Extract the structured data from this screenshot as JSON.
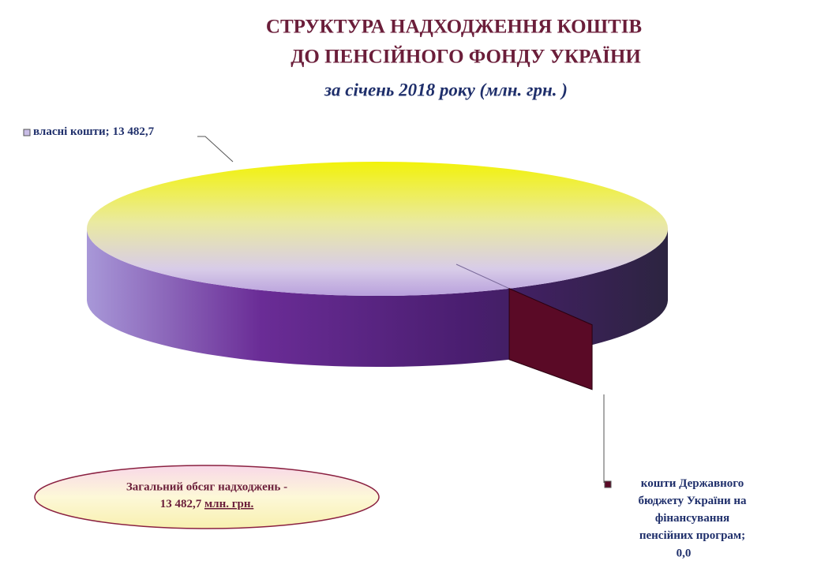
{
  "chart_data": {
    "type": "pie3d",
    "title_lines": [
      "СТРУКТУРА  НАДХОДЖЕННЯ КОШТІВ",
      "ДО ПЕНСІЙНОГО ФОНДУ УКРАЇНИ"
    ],
    "subtitle": "за  січень 2018 року (млн. грн. )",
    "categories": [
      "власні кошти",
      "кошти Державного бюджету України на фінансування пенсійних програм"
    ],
    "values": [
      13482.7,
      0.0
    ],
    "value_labels": [
      "13 482,7",
      "0,0"
    ],
    "label_separator": ";",
    "colors": [
      "#c9bde6",
      "#5a0a26"
    ],
    "annotation": {
      "text": "Загальний обсяг надходжень -",
      "total": "13 482,7",
      "unit": "млн. грн."
    }
  }
}
